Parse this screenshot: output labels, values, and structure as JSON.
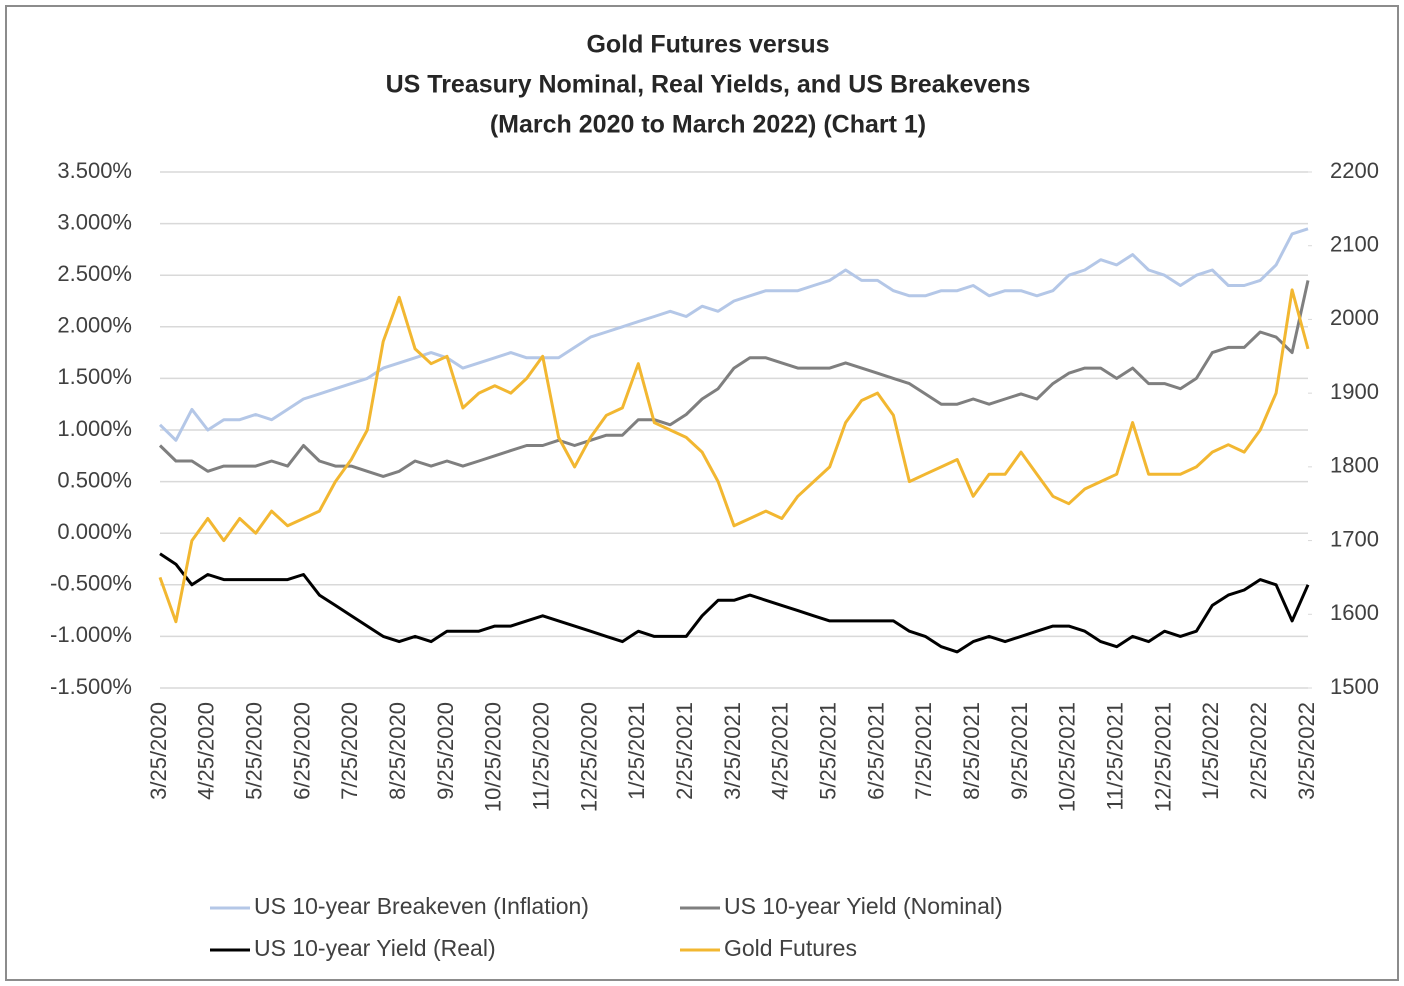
{
  "chart_data": {
    "type": "line",
    "title": [
      "Gold Futures versus",
      "US Treasury Nominal, Real Yields, and US Breakevens",
      "(March 2020 to March 2022) (Chart 1)"
    ],
    "categories": [
      "3/25/2020",
      null,
      null,
      "4/25/2020",
      null,
      null,
      "5/25/2020",
      null,
      null,
      "6/25/2020",
      null,
      null,
      "7/25/2020",
      null,
      null,
      "8/25/2020",
      null,
      null,
      "9/25/2020",
      null,
      null,
      "10/25/2020",
      null,
      null,
      "11/25/2020",
      null,
      null,
      "12/25/2020",
      null,
      null,
      "1/25/2021",
      null,
      null,
      "2/25/2021",
      null,
      null,
      "3/25/2021",
      null,
      null,
      "4/25/2021",
      null,
      null,
      "5/25/2021",
      null,
      null,
      "6/25/2021",
      null,
      null,
      "7/25/2021",
      null,
      null,
      "8/25/2021",
      null,
      null,
      "9/25/2021",
      null,
      null,
      "10/25/2021",
      null,
      null,
      "11/25/2021",
      null,
      null,
      "12/25/2021",
      null,
      null,
      "1/25/2022",
      null,
      null,
      "2/25/2022",
      null,
      null,
      "3/25/2022"
    ],
    "series": [
      {
        "name": "US 10-year Breakeven (Inflation)",
        "color": "#b4c7e7",
        "values": [
          1.05,
          0.9,
          1.2,
          1.0,
          1.1,
          1.1,
          1.15,
          1.1,
          1.2,
          1.3,
          1.35,
          1.4,
          1.45,
          1.5,
          1.6,
          1.65,
          1.7,
          1.75,
          1.7,
          1.6,
          1.65,
          1.7,
          1.75,
          1.7,
          1.7,
          1.7,
          1.8,
          1.9,
          1.95,
          2.0,
          2.05,
          2.1,
          2.15,
          2.1,
          2.2,
          2.15,
          2.25,
          2.3,
          2.35,
          2.35,
          2.35,
          2.4,
          2.45,
          2.55,
          2.45,
          2.45,
          2.35,
          2.3,
          2.3,
          2.35,
          2.35,
          2.4,
          2.3,
          2.35,
          2.35,
          2.3,
          2.35,
          2.5,
          2.55,
          2.65,
          2.6,
          2.7,
          2.55,
          2.5,
          2.4,
          2.5,
          2.55,
          2.4,
          2.4,
          2.45,
          2.6,
          2.9,
          2.95
        ]
      },
      {
        "name": "US 10-year Yield (Nominal)",
        "color": "#7f7f7f",
        "values": [
          0.85,
          0.7,
          0.7,
          0.6,
          0.65,
          0.65,
          0.65,
          0.7,
          0.65,
          0.85,
          0.7,
          0.65,
          0.65,
          0.6,
          0.55,
          0.6,
          0.7,
          0.65,
          0.7,
          0.65,
          0.7,
          0.75,
          0.8,
          0.85,
          0.85,
          0.9,
          0.85,
          0.9,
          0.95,
          0.95,
          1.1,
          1.1,
          1.05,
          1.15,
          1.3,
          1.4,
          1.6,
          1.7,
          1.7,
          1.65,
          1.6,
          1.6,
          1.6,
          1.65,
          1.6,
          1.55,
          1.5,
          1.45,
          1.35,
          1.25,
          1.25,
          1.3,
          1.25,
          1.3,
          1.35,
          1.3,
          1.45,
          1.55,
          1.6,
          1.6,
          1.5,
          1.6,
          1.45,
          1.45,
          1.4,
          1.5,
          1.75,
          1.8,
          1.8,
          1.95,
          1.9,
          1.75,
          2.45
        ]
      },
      {
        "name": "US 10-year Yield (Real)",
        "color": "#000000",
        "values": [
          -0.2,
          -0.3,
          -0.5,
          -0.4,
          -0.45,
          -0.45,
          -0.45,
          -0.45,
          -0.45,
          -0.4,
          -0.6,
          -0.7,
          -0.8,
          -0.9,
          -1.0,
          -1.05,
          -1.0,
          -1.05,
          -0.95,
          -0.95,
          -0.95,
          -0.9,
          -0.9,
          -0.85,
          -0.8,
          -0.85,
          -0.9,
          -0.95,
          -1.0,
          -1.05,
          -0.95,
          -1.0,
          -1.0,
          -1.0,
          -0.8,
          -0.65,
          -0.65,
          -0.6,
          -0.65,
          -0.7,
          -0.75,
          -0.8,
          -0.85,
          -0.85,
          -0.85,
          -0.85,
          -0.85,
          -0.95,
          -1.0,
          -1.1,
          -1.15,
          -1.05,
          -1.0,
          -1.05,
          -1.0,
          -0.95,
          -0.9,
          -0.9,
          -0.95,
          -1.05,
          -1.1,
          -1.0,
          -1.05,
          -0.95,
          -1.0,
          -0.95,
          -0.7,
          -0.6,
          -0.55,
          -0.45,
          -0.5,
          -0.85,
          -0.5
        ]
      },
      {
        "name": "Gold Futures",
        "color": "#f2b731",
        "axis": "y2",
        "values": [
          1650,
          1590,
          1700,
          1730,
          1700,
          1730,
          1710,
          1740,
          1720,
          1730,
          1740,
          1780,
          1810,
          1850,
          1970,
          2030,
          1960,
          1940,
          1950,
          1880,
          1900,
          1910,
          1900,
          1920,
          1950,
          1840,
          1800,
          1840,
          1870,
          1880,
          1940,
          1860,
          1850,
          1840,
          1820,
          1780,
          1720,
          1730,
          1740,
          1730,
          1760,
          1780,
          1800,
          1860,
          1890,
          1900,
          1870,
          1780,
          1790,
          1800,
          1810,
          1760,
          1790,
          1790,
          1820,
          1790,
          1760,
          1750,
          1770,
          1780,
          1790,
          1860,
          1790,
          1790,
          1790,
          1800,
          1820,
          1830,
          1820,
          1850,
          1900,
          2040,
          1960
        ]
      }
    ],
    "ylim": [
      -1.5,
      3.5
    ],
    "yticks": [
      {
        "value": -1.5,
        "label": "-1.500%"
      },
      {
        "value": -1.0,
        "label": "-1.000%"
      },
      {
        "value": -0.5,
        "label": "-0.500%"
      },
      {
        "value": 0,
        "label": "0.000%"
      },
      {
        "value": 0.5,
        "label": "0.500%"
      },
      {
        "value": 1.0,
        "label": "1.000%"
      },
      {
        "value": 1.5,
        "label": "1.500%"
      },
      {
        "value": 2.0,
        "label": "2.000%"
      },
      {
        "value": 2.5,
        "label": "2.500%"
      },
      {
        "value": 3.0,
        "label": "3.000%"
      },
      {
        "value": 3.5,
        "label": "3.500%"
      }
    ],
    "y2lim": [
      1500,
      2200
    ],
    "y2ticks": [
      1500,
      1600,
      1700,
      1800,
      1900,
      2000,
      2100,
      2200
    ],
    "grid": true
  }
}
